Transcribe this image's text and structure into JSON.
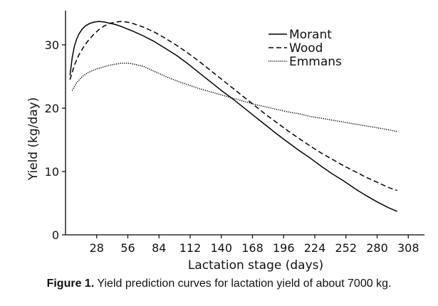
{
  "chart_data": {
    "type": "line",
    "title": "",
    "xlabel": "Lactation stage (days)",
    "ylabel": "Yield (kg/day)",
    "xlim": [
      0,
      315
    ],
    "ylim": [
      0,
      35
    ],
    "x_ticks": [
      28,
      56,
      84,
      112,
      140,
      168,
      196,
      224,
      252,
      280,
      308
    ],
    "y_ticks": [
      0,
      10,
      20,
      30
    ],
    "grid": false,
    "legend_position": "top-right",
    "series": [
      {
        "name": "Morant",
        "style": "solid",
        "x": [
          4,
          6,
          8,
          10,
          12,
          15,
          18,
          22,
          26,
          30,
          35,
          40,
          45,
          50,
          60,
          70,
          80,
          90,
          100,
          110,
          120,
          130,
          140,
          150,
          160,
          170,
          180,
          190,
          200,
          210,
          220,
          230,
          240,
          250,
          260,
          270,
          280,
          290,
          298
        ],
        "y": [
          25.2,
          28.0,
          29.8,
          30.9,
          31.7,
          32.5,
          33.0,
          33.4,
          33.6,
          33.7,
          33.6,
          33.4,
          33.2,
          32.9,
          32.2,
          31.4,
          30.5,
          29.4,
          28.3,
          27.0,
          25.6,
          24.2,
          22.8,
          21.5,
          20.1,
          18.7,
          17.3,
          15.9,
          14.6,
          13.3,
          12.1,
          10.8,
          9.6,
          8.5,
          7.3,
          6.2,
          5.2,
          4.3,
          3.7
        ]
      },
      {
        "name": "Wood",
        "style": "dashed",
        "x": [
          4,
          8,
          12,
          16,
          20,
          25,
          30,
          35,
          40,
          45,
          50,
          55,
          60,
          70,
          80,
          90,
          100,
          110,
          120,
          130,
          140,
          150,
          160,
          170,
          180,
          190,
          200,
          210,
          220,
          230,
          240,
          250,
          260,
          270,
          280,
          290,
          298
        ],
        "y": [
          24.5,
          26.8,
          28.4,
          29.6,
          30.6,
          31.6,
          32.4,
          33.0,
          33.4,
          33.6,
          33.7,
          33.6,
          33.4,
          32.8,
          32.0,
          31.0,
          29.9,
          28.7,
          27.4,
          26.0,
          24.6,
          23.2,
          21.8,
          20.4,
          19.0,
          17.7,
          16.4,
          15.2,
          14.0,
          12.9,
          11.9,
          10.9,
          10.0,
          9.1,
          8.3,
          7.5,
          7.0
        ]
      },
      {
        "name": "Emmans",
        "style": "dotted",
        "x": [
          6,
          10,
          15,
          20,
          25,
          30,
          40,
          50,
          56,
          60,
          70,
          80,
          90,
          100,
          110,
          120,
          130,
          140,
          150,
          160,
          170,
          180,
          190,
          200,
          210,
          220,
          230,
          240,
          250,
          260,
          270,
          280,
          290,
          298
        ],
        "y": [
          22.8,
          24.0,
          25.0,
          25.6,
          26.0,
          26.3,
          26.8,
          27.1,
          27.1,
          27.0,
          26.6,
          25.8,
          25.0,
          24.3,
          23.7,
          23.1,
          22.6,
          22.1,
          21.6,
          21.1,
          20.6,
          20.2,
          19.8,
          19.4,
          19.1,
          18.7,
          18.4,
          18.1,
          17.8,
          17.5,
          17.2,
          16.9,
          16.6,
          16.3
        ]
      }
    ]
  },
  "caption": {
    "label": "Figure 1.",
    "text": " Yield prediction curves for lactation yield of about 7000 kg."
  }
}
